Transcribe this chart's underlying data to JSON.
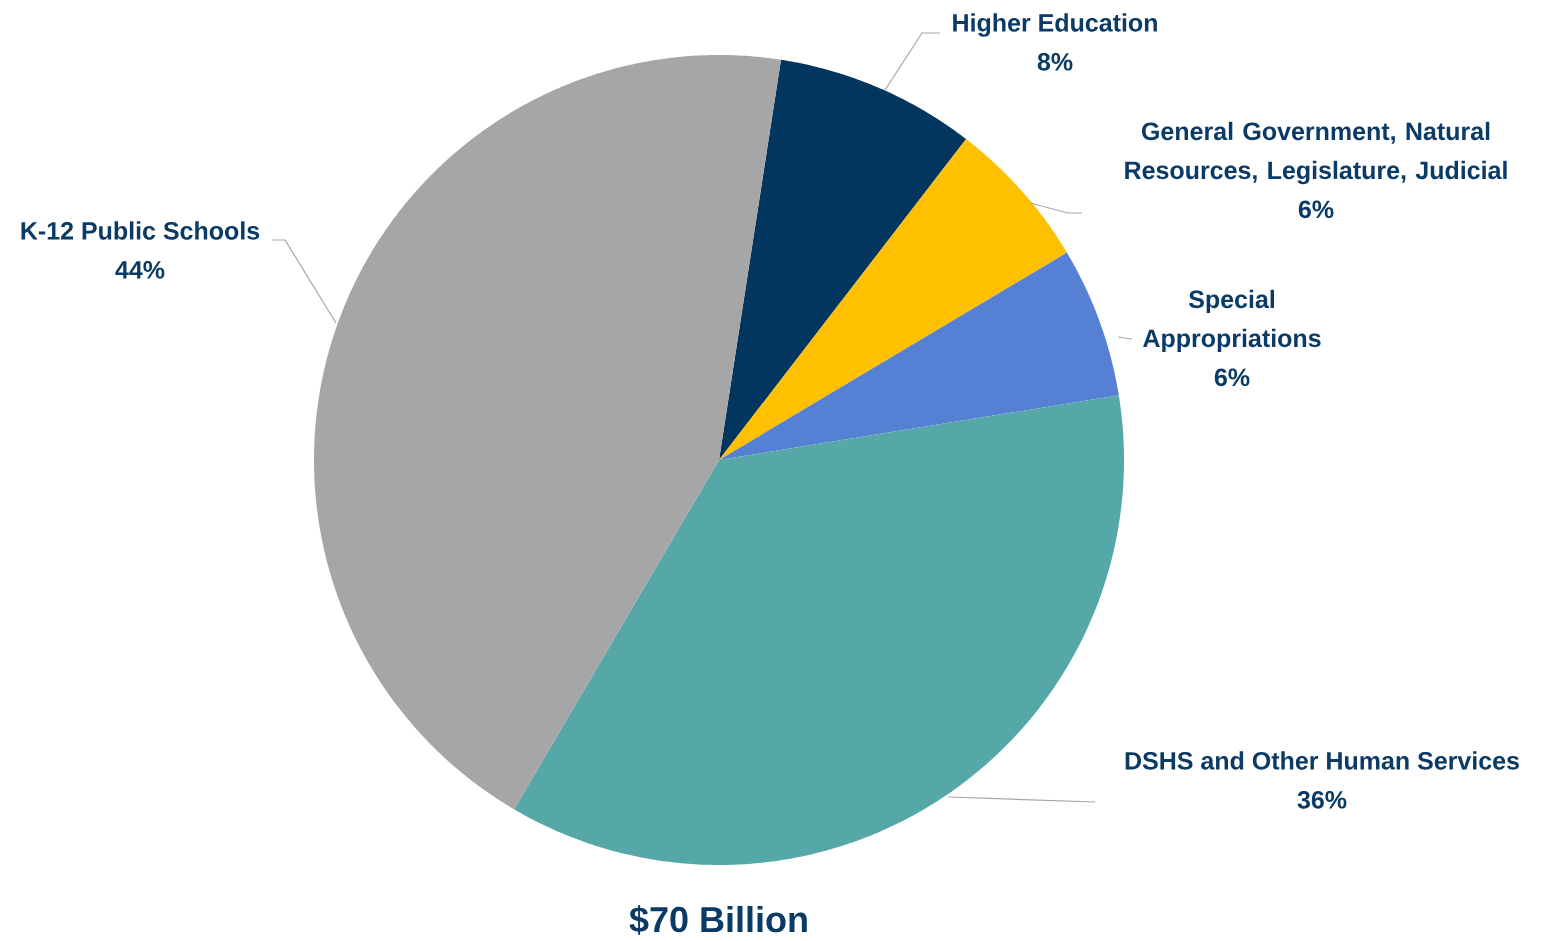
{
  "chart_data": {
    "type": "pie",
    "title": "$70 Billion",
    "categories": [
      "Higher Education",
      "General Government, Natural Resources, Legislature, Judicial",
      "Special Appropriations",
      "DSHS and Other Human Services",
      "K-12 Public Schools"
    ],
    "values": [
      8,
      6,
      6,
      36,
      44
    ],
    "value_labels": [
      "8%",
      "6%",
      "6%",
      "36%",
      "44%"
    ],
    "colors": [
      "#03365f",
      "#ffc000",
      "#5680d4",
      "#56a7a7",
      "#a6a6a6"
    ]
  }
}
